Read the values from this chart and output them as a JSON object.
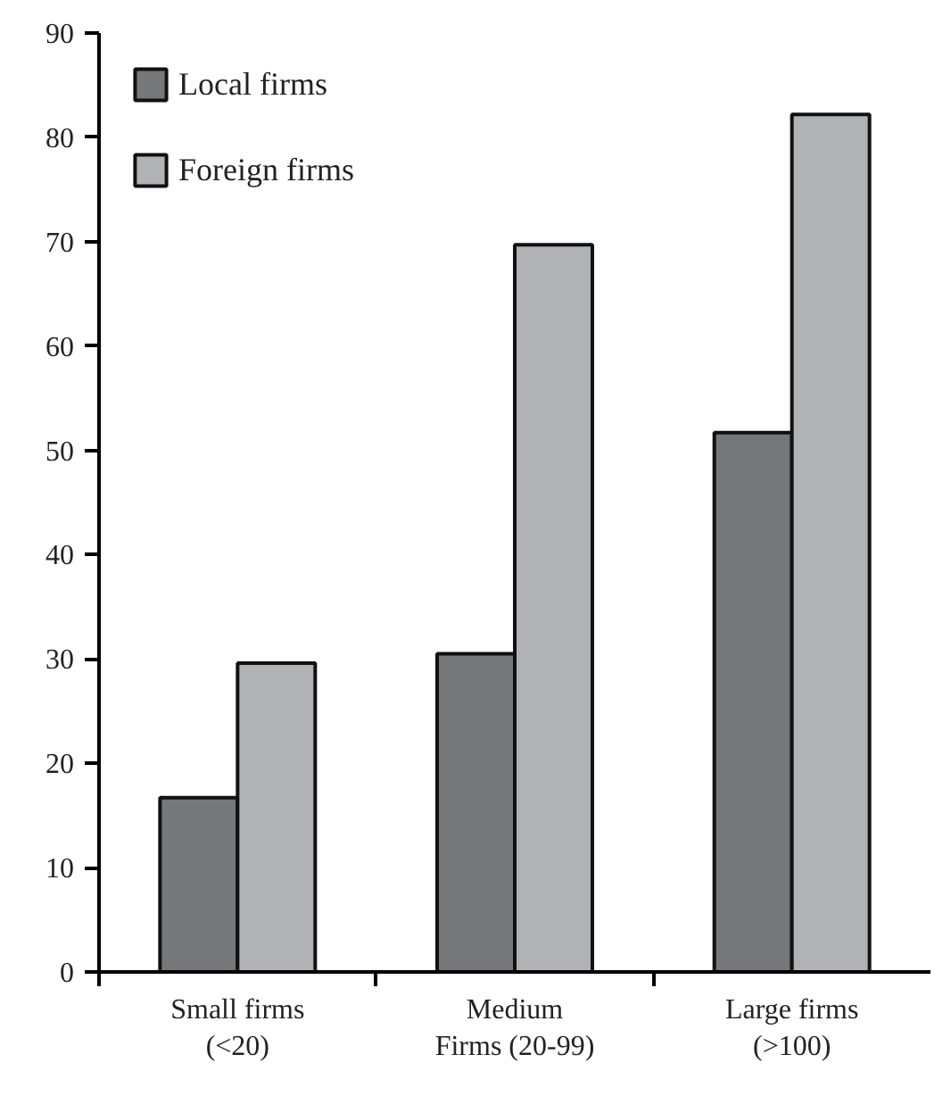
{
  "chart_data": {
    "type": "bar",
    "categories": [
      "Small firms\n(<20)",
      "Medium\nFirms (20-99)",
      "Large firms\n(>100)"
    ],
    "series": [
      {
        "name": "Local firms",
        "color": "#76777b",
        "values": [
          16.7,
          30.5,
          51.7
        ]
      },
      {
        "name": "Foreign firms",
        "color": "#b1b2b6",
        "values": [
          29.6,
          69.7,
          82.2
        ]
      }
    ],
    "ylim": [
      0,
      90
    ],
    "yticks": [
      0,
      10,
      20,
      30,
      40,
      50,
      60,
      70,
      80,
      90
    ],
    "grid": false,
    "legend": "top left"
  }
}
